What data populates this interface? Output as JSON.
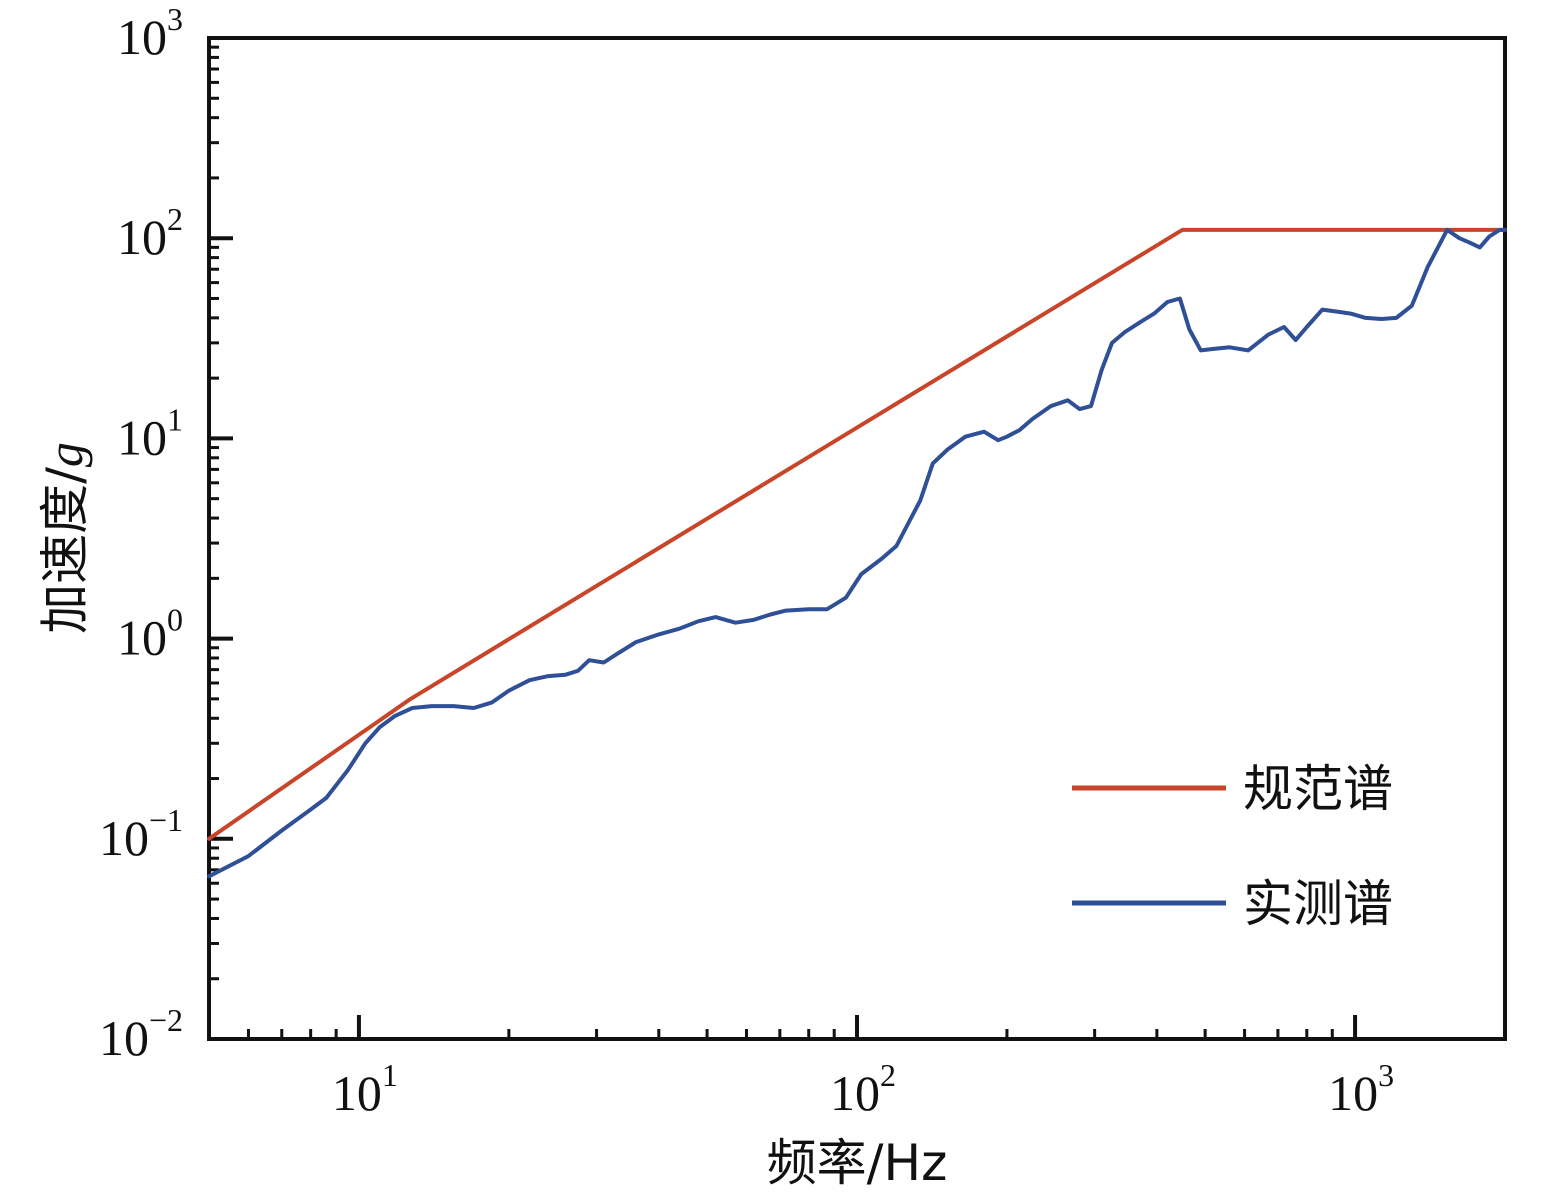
{
  "chart_data": {
    "type": "line",
    "xlabel": "频率/Hz",
    "ylabel_main": "加速度/",
    "ylabel_unit": "g",
    "x_scale": "log",
    "y_scale": "log",
    "xlim": [
      5,
      2000
    ],
    "ylim": [
      0.01,
      1000
    ],
    "x_ticks": [
      {
        "value": 10,
        "base": "10",
        "exp": "1"
      },
      {
        "value": 100,
        "base": "10",
        "exp": "2"
      },
      {
        "value": 1000,
        "base": "10",
        "exp": "3"
      }
    ],
    "y_ticks": [
      {
        "value": 0.01,
        "base": "10",
        "exp": "−2"
      },
      {
        "value": 0.1,
        "base": "10",
        "exp": "−1"
      },
      {
        "value": 1,
        "base": "10",
        "exp": "0"
      },
      {
        "value": 10,
        "base": "10",
        "exp": "1"
      },
      {
        "value": 100,
        "base": "10",
        "exp": "2"
      },
      {
        "value": 1000,
        "base": "10",
        "exp": "3"
      }
    ],
    "legend_position": "bottom-right",
    "series": [
      {
        "name": "规范谱",
        "color": "#c8452a",
        "x": [
          5,
          12.7,
          450,
          2000
        ],
        "y": [
          0.1,
          0.5,
          110,
          110
        ]
      },
      {
        "name": "实测谱",
        "color": "#2f4f96",
        "x": [
          5,
          6,
          7,
          8,
          8.6,
          9.5,
          10.3,
          11,
          11.8,
          12.8,
          14,
          15.5,
          17,
          18.5,
          20,
          22,
          24,
          26,
          27.5,
          29,
          31,
          33,
          36,
          40,
          44,
          48,
          52,
          57,
          62,
          67,
          72,
          80,
          87,
          95,
          102,
          112,
          120,
          127,
          134,
          142,
          152,
          165,
          180,
          192,
          200,
          212,
          225,
          245,
          265,
          280,
          295,
          310,
          325,
          345,
          370,
          395,
          420,
          445,
          465,
          490,
          520,
          560,
          610,
          670,
          720,
          760,
          800,
          860,
          920,
          980,
          1050,
          1130,
          1210,
          1300,
          1400,
          1530,
          1620,
          1700,
          1780,
          1860,
          1950,
          2000
        ],
        "y": [
          0.065,
          0.082,
          0.11,
          0.14,
          0.16,
          0.22,
          0.3,
          0.36,
          0.41,
          0.45,
          0.46,
          0.46,
          0.45,
          0.48,
          0.55,
          0.62,
          0.65,
          0.66,
          0.69,
          0.78,
          0.76,
          0.84,
          0.96,
          1.05,
          1.12,
          1.22,
          1.28,
          1.2,
          1.24,
          1.32,
          1.38,
          1.4,
          1.4,
          1.6,
          2.1,
          2.5,
          2.9,
          3.8,
          4.9,
          7.5,
          8.8,
          10.2,
          10.8,
          9.8,
          10.2,
          11,
          12.5,
          14.5,
          15.5,
          14,
          14.5,
          22,
          30,
          34,
          38,
          42,
          48,
          50,
          35,
          27.5,
          28,
          28.5,
          27.5,
          33,
          36,
          31,
          36,
          44,
          43,
          42,
          40,
          39.5,
          40,
          46,
          72,
          110,
          100,
          95,
          90,
          102,
          110,
          110
        ]
      }
    ]
  }
}
